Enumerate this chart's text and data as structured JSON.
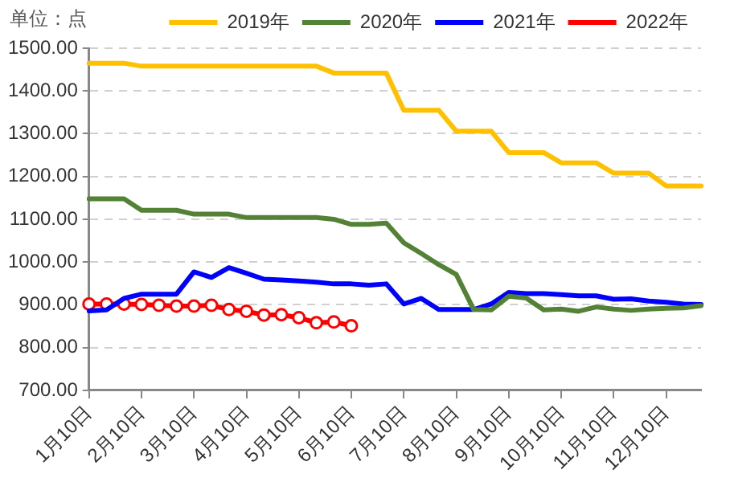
{
  "chart_data": {
    "type": "line",
    "categories": [
      "1月10日",
      null,
      null,
      "2月10日",
      null,
      null,
      "3月10日",
      null,
      null,
      "4月10日",
      null,
      null,
      "5月10日",
      null,
      null,
      "6月10日",
      null,
      null,
      "7月10日",
      null,
      null,
      "8月10日",
      null,
      null,
      "9月10日",
      null,
      null,
      "10月10日",
      null,
      null,
      "11月10日",
      null,
      null,
      "12月10日",
      null,
      null
    ],
    "series": [
      {
        "name": "2019年",
        "color": "#ffc000",
        "marker": "none",
        "values": [
          1465,
          1465,
          1465,
          1458,
          1458,
          1458,
          1458,
          1458,
          1458,
          1458,
          1458,
          1458,
          1458,
          1458,
          1442,
          1442,
          1442,
          1442,
          1355,
          1355,
          1355,
          1306,
          1306,
          1306,
          1256,
          1256,
          1256,
          1232,
          1232,
          1232,
          1208,
          1208,
          1208,
          1178,
          1178,
          1178
        ]
      },
      {
        "name": "2020年",
        "color": "#538135",
        "marker": "none",
        "values": [
          1148,
          1148,
          1148,
          1121,
          1121,
          1121,
          1112,
          1112,
          1112,
          1104,
          1104,
          1104,
          1104,
          1104,
          1100,
          1088,
          1088,
          1091,
          1045,
          1020,
          994,
          971,
          889,
          888,
          920,
          916,
          888,
          890,
          885,
          895,
          890,
          887,
          890,
          892,
          893,
          898
        ]
      },
      {
        "name": "2021年",
        "color": "#0000ff",
        "marker": "none",
        "values": [
          886,
          888,
          915,
          925,
          925,
          925,
          977,
          964,
          987,
          974,
          960,
          958,
          956,
          953,
          949,
          949,
          946,
          949,
          902,
          915,
          889,
          889,
          889,
          902,
          929,
          926,
          926,
          924,
          921,
          921,
          913,
          914,
          909,
          906,
          902,
          901
        ]
      },
      {
        "name": "2022年",
        "color": "#ff0000",
        "marker": "circle",
        "values": [
          902,
          902,
          902,
          901,
          899,
          897,
          897,
          899,
          889,
          885,
          876,
          877,
          870,
          858,
          860,
          851,
          null,
          null,
          null,
          null,
          null,
          null,
          null,
          null,
          null,
          null,
          null,
          null,
          null,
          null,
          null,
          null,
          null,
          null,
          null,
          null
        ]
      }
    ],
    "ylim": [
      700,
      1500
    ],
    "yticks": [
      {
        "value": 700,
        "label": "700.00"
      },
      {
        "value": 800,
        "label": "800.00"
      },
      {
        "value": 900,
        "label": "900.00"
      },
      {
        "value": 1000,
        "label": "1000.00"
      },
      {
        "value": 1100,
        "label": "1100.00"
      },
      {
        "value": 1200,
        "label": "1200.00"
      },
      {
        "value": 1300,
        "label": "1300.00"
      },
      {
        "value": 1400,
        "label": "1400.00"
      },
      {
        "value": 1500,
        "label": "1500.00"
      }
    ],
    "grid": "y",
    "legend": "top right",
    "line_style": "solid",
    "annotations": [
      "单位：点"
    ]
  }
}
